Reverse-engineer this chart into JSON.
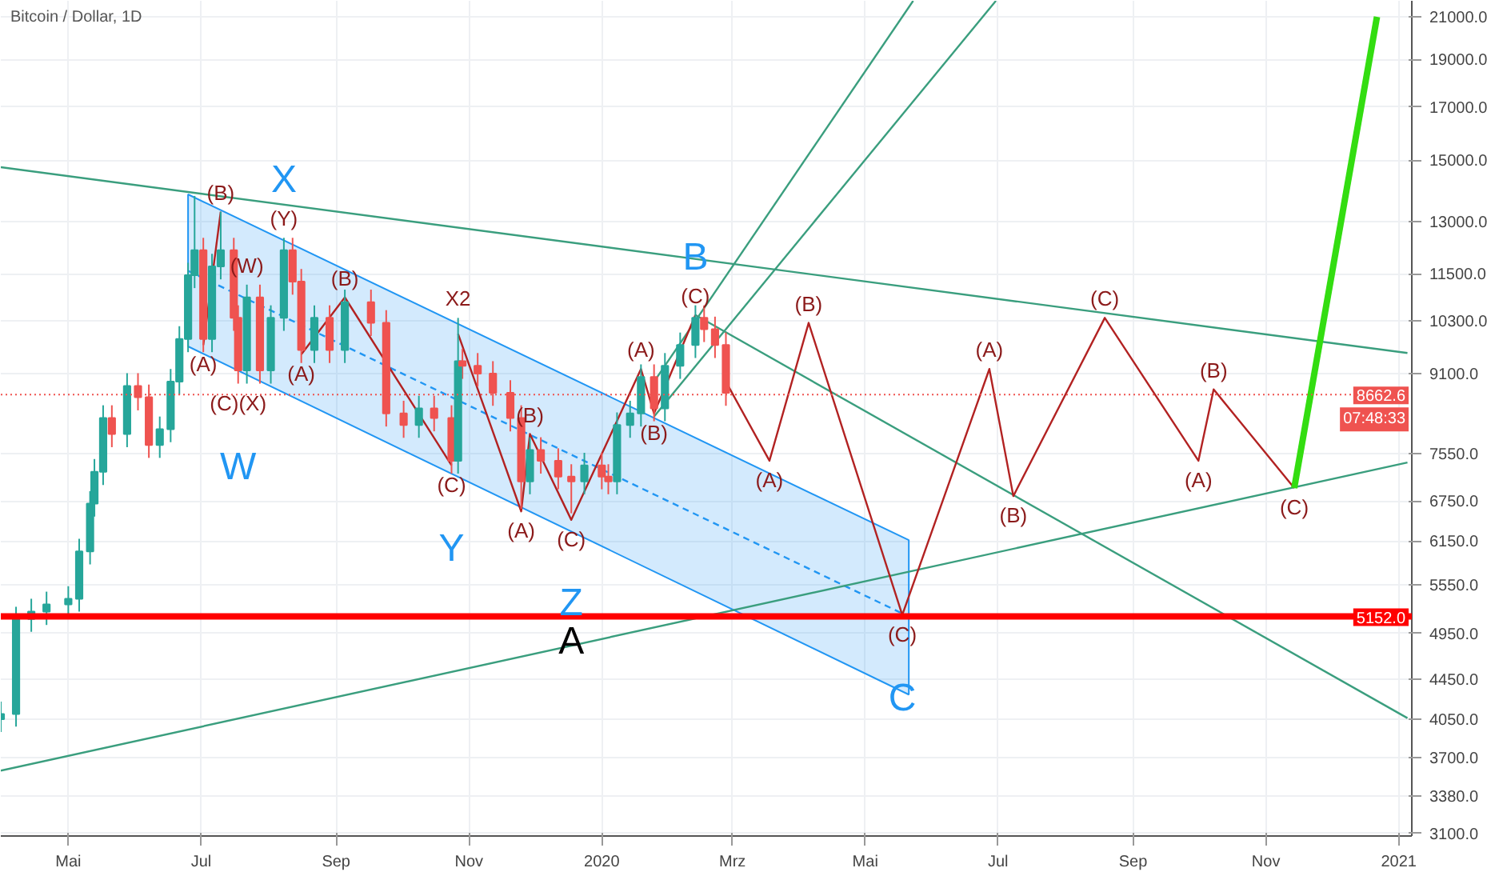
{
  "chart_data": {
    "type": "candlestick",
    "title": "Bitcoin / Dollar, 1D",
    "log": "y",
    "grid": true,
    "tick_labels": "xy",
    "xlim": [
      "2019-03-31",
      "2021-01-07"
    ],
    "ylim": [
      3080,
      21800
    ],
    "xticks": [
      {
        "value": "2019-05-01",
        "label": "Mai"
      },
      {
        "value": "2019-07-01",
        "label": "Jul"
      },
      {
        "value": "2019-09-01",
        "label": "Sep"
      },
      {
        "value": "2019-11-01",
        "label": "Nov"
      },
      {
        "value": "2020-01-01",
        "label": "2020"
      },
      {
        "value": "2020-03-01",
        "label": "Mrz"
      },
      {
        "value": "2020-05-01",
        "label": "Mai"
      },
      {
        "value": "2020-07-01",
        "label": "Jul"
      },
      {
        "value": "2020-09-01",
        "label": "Sep"
      },
      {
        "value": "2020-11-01",
        "label": "Nov"
      },
      {
        "value": "2021-01-01",
        "label": "2021"
      }
    ],
    "yticks": [
      {
        "value": 3100,
        "label": "3100.0"
      },
      {
        "value": 3380,
        "label": "3380.0"
      },
      {
        "value": 3700,
        "label": "3700.0"
      },
      {
        "value": 4050,
        "label": "4050.0"
      },
      {
        "value": 4450,
        "label": "4450.0"
      },
      {
        "value": 4950,
        "label": "4950.0"
      },
      {
        "value": 5550,
        "label": "5550.0"
      },
      {
        "value": 6150,
        "label": "6150.0"
      },
      {
        "value": 6750,
        "label": "6750.0"
      },
      {
        "value": 7550,
        "label": "7550.0"
      },
      {
        "value": 9100,
        "label": "9100.0"
      },
      {
        "value": 10300,
        "label": "10300.0"
      },
      {
        "value": 11500,
        "label": "11500.0"
      },
      {
        "value": 13000,
        "label": "13000.0"
      },
      {
        "value": 15000,
        "label": "15000.0"
      },
      {
        "value": 17000,
        "label": "17000.0"
      },
      {
        "value": 19000,
        "label": "19000.0"
      },
      {
        "value": 21000,
        "label": "21000.0"
      }
    ],
    "x": [
      "2019-03-31",
      "2019-04-07",
      "2019-04-14",
      "2019-04-21",
      "2019-05-01",
      "2019-05-06",
      "2019-05-11",
      "2019-05-13",
      "2019-05-17",
      "2019-05-21",
      "2019-05-28",
      "2019-06-02",
      "2019-06-07",
      "2019-06-12",
      "2019-06-17",
      "2019-06-21",
      "2019-06-25",
      "2019-06-28",
      "2019-07-02",
      "2019-07-06",
      "2019-07-10",
      "2019-07-16",
      "2019-07-18",
      "2019-07-22",
      "2019-07-28",
      "2019-08-02",
      "2019-08-08",
      "2019-08-12",
      "2019-08-16",
      "2019-08-22",
      "2019-08-29",
      "2019-09-05",
      "2019-09-17",
      "2019-09-24",
      "2019-10-02",
      "2019-10-09",
      "2019-10-16",
      "2019-10-24",
      "2019-10-27",
      "2019-10-29",
      "2019-11-05",
      "2019-11-12",
      "2019-11-20",
      "2019-11-25",
      "2019-11-29",
      "2019-12-04",
      "2019-12-12",
      "2019-12-18",
      "2019-12-24",
      "2020-01-01",
      "2020-01-04",
      "2020-01-08",
      "2020-01-14",
      "2020-01-19",
      "2020-01-25",
      "2020-01-30",
      "2020-02-06",
      "2020-02-13",
      "2020-02-17",
      "2020-02-22",
      "2020-02-27"
    ],
    "ohlc": [
      [
        4050,
        4220,
        3930,
        4100
      ],
      [
        4100,
        5270,
        3980,
        5120
      ],
      [
        5120,
        5370,
        4970,
        5210
      ],
      [
        5210,
        5460,
        5050,
        5300
      ],
      [
        5300,
        5530,
        5140,
        5370
      ],
      [
        5370,
        6180,
        5210,
        6000
      ],
      [
        6000,
        6910,
        5820,
        6710
      ],
      [
        6710,
        7450,
        6510,
        7230
      ],
      [
        7230,
        8450,
        7010,
        8200
      ],
      [
        8200,
        8450,
        7660,
        7900
      ],
      [
        7900,
        9110,
        7660,
        8840
      ],
      [
        8840,
        9110,
        8350,
        8610
      ],
      [
        8610,
        8870,
        7470,
        7700
      ],
      [
        7700,
        8230,
        7470,
        7990
      ],
      [
        7990,
        9200,
        7750,
        8930
      ],
      [
        8930,
        10170,
        8660,
        9870
      ],
      [
        9870,
        11800,
        9570,
        11460
      ],
      [
        11460,
        13800,
        11120,
        12150
      ],
      [
        12150,
        12510,
        9570,
        9870
      ],
      [
        9870,
        12050,
        9570,
        11700
      ],
      [
        11700,
        13300,
        11350,
        12150
      ],
      [
        12150,
        12510,
        10060,
        10370
      ],
      [
        10370,
        10680,
        8890,
        9170
      ],
      [
        9170,
        11210,
        8890,
        10880
      ],
      [
        10880,
        11210,
        8890,
        9170
      ],
      [
        9170,
        10680,
        8890,
        10370
      ],
      [
        10370,
        12510,
        10060,
        12150
      ],
      [
        12150,
        12510,
        10950,
        11290
      ],
      [
        11290,
        11630,
        9330,
        9620
      ],
      [
        9620,
        10680,
        9330,
        10370
      ],
      [
        10370,
        10680,
        9330,
        9620
      ],
      [
        9620,
        11080,
        9330,
        10760
      ],
      [
        10760,
        11080,
        9940,
        10250
      ],
      [
        10250,
        10560,
        8040,
        8290
      ],
      [
        8290,
        8540,
        7830,
        8070
      ],
      [
        8070,
        8640,
        7830,
        8390
      ],
      [
        8390,
        8640,
        7950,
        8200
      ],
      [
        8200,
        8450,
        7200,
        7420
      ],
      [
        7420,
        10370,
        7200,
        9370
      ],
      [
        9370,
        9650,
        8990,
        9270
      ],
      [
        9270,
        9550,
        8830,
        9100
      ],
      [
        9100,
        9370,
        8440,
        8700
      ],
      [
        8700,
        8960,
        7950,
        8200
      ],
      [
        8200,
        8450,
        6630,
        7070
      ],
      [
        7070,
        7840,
        6860,
        7610
      ],
      [
        7610,
        7840,
        7200,
        7420
      ],
      [
        7420,
        7640,
        6940,
        7150
      ],
      [
        7150,
        7360,
        6560,
        7070
      ],
      [
        7070,
        7560,
        6860,
        7340
      ],
      [
        7340,
        7560,
        6940,
        7150
      ],
      [
        7150,
        7360,
        6860,
        7070
      ],
      [
        7070,
        8310,
        6860,
        8070
      ],
      [
        8070,
        8540,
        7830,
        8290
      ],
      [
        8290,
        9300,
        8040,
        9030
      ],
      [
        9030,
        9300,
        8140,
        8390
      ],
      [
        8390,
        9550,
        8140,
        9270
      ],
      [
        9270,
        10020,
        8990,
        9730
      ],
      [
        9730,
        10680,
        9440,
        10370
      ],
      [
        10370,
        10680,
        9800,
        10100
      ],
      [
        10100,
        10400,
        9440,
        9730
      ],
      [
        9730,
        10020,
        8440,
        8700
      ]
    ],
    "series": [
      {
        "type": "line",
        "x": [
          "2019-06-25",
          "2020-05-21"
        ],
        "values": [
          11580,
          5150
        ],
        "lower": [
          9700,
          4290
        ],
        "upper": [
          13850,
          6160
        ],
        "color": "#2196f3",
        "line_style": "dashed"
      },
      {
        "type": "line",
        "x": [
          "2019-03-31",
          "2021-01-05"
        ],
        "values": [
          14760,
          9550
        ],
        "color": "#3a9e7e",
        "line_style": "solid"
      },
      {
        "type": "line",
        "x": [
          "2019-03-31",
          "2021-01-05"
        ],
        "values": [
          3590,
          7390
        ],
        "color": "#3a9e7e",
        "line_style": "solid"
      },
      {
        "type": "line",
        "x": [
          "2020-01-25",
          "2020-05-23"
        ],
        "values": [
          8930,
          21800
        ],
        "color": "#3a9e7e",
        "line_style": "solid"
      },
      {
        "type": "line",
        "x": [
          "2020-01-25",
          "2020-06-30"
        ],
        "values": [
          8230,
          21800
        ],
        "color": "#3a9e7e",
        "line_style": "solid"
      },
      {
        "type": "line",
        "x": [
          "2020-02-13",
          "2021-01-05"
        ],
        "values": [
          10440,
          4060
        ],
        "color": "#3a9e7e",
        "line_style": "solid"
      },
      {
        "type": "line",
        "x": [
          "2019-07-02",
          "2019-07-10"
        ],
        "values": [
          9730,
          13300
        ],
        "color": "#b22222",
        "line_style": "solid"
      },
      {
        "type": "line",
        "x": [
          "2019-08-16",
          "2019-09-05",
          "2019-10-24"
        ],
        "values": [
          9520,
          10880,
          7340
        ],
        "color": "#b22222",
        "line_style": "solid"
      },
      {
        "type": "line",
        "x": [
          "2019-10-27",
          "2019-11-25",
          "2019-11-29",
          "2019-12-18",
          "2020-01-19",
          "2020-01-25",
          "2020-02-13"
        ],
        "values": [
          9990,
          6590,
          7900,
          6460,
          9200,
          8290,
          10440
        ],
        "color": "#b22222",
        "line_style": "solid"
      },
      {
        "type": "line",
        "x": [
          "2020-02-27",
          "2020-03-18",
          "2020-04-05",
          "2020-05-18",
          "2020-06-27",
          "2020-07-08",
          "2020-08-19",
          "2020-10-01",
          "2020-10-08",
          "2020-11-14"
        ],
        "values": [
          8930,
          7420,
          10250,
          5170,
          9200,
          6830,
          10370,
          7420,
          8770,
          6960
        ],
        "color": "#b22222",
        "line_style": "solid"
      },
      {
        "type": "line",
        "x": [
          "2020-11-14",
          "2020-12-22"
        ],
        "values": [
          6960,
          21000
        ],
        "color": "#33dd11",
        "line_style": "solid"
      }
    ],
    "ref_lines": [
      {
        "axis": "y",
        "value": 5152,
        "label": "5152.0",
        "color": "#ff0000",
        "line_style": "solid"
      },
      {
        "axis": "y",
        "value": 8662.6,
        "label": "8662.6",
        "color": "#ef5350",
        "line_style": "dotted"
      }
    ],
    "annotations": [
      {
        "text": "(B)",
        "x": "2019-07-10",
        "y": 13300
      },
      {
        "text": "(Y)",
        "x": "2019-08-08",
        "y": 12510
      },
      {
        "text": "X",
        "x": "2019-08-08",
        "y": 12510
      },
      {
        "text": "(W)",
        "x": "2019-07-22",
        "y": 11210
      },
      {
        "text": "(B)",
        "x": "2019-09-05",
        "y": 10880
      },
      {
        "text": "(A)",
        "x": "2019-07-02",
        "y": 9730
      },
      {
        "text": "(C)(X)",
        "x": "2019-07-18",
        "y": 8890
      },
      {
        "text": "(A)",
        "x": "2019-08-16",
        "y": 9520
      },
      {
        "text": "W",
        "x": "2019-07-18",
        "y": 8890
      },
      {
        "text": "X2",
        "x": "2019-10-27",
        "y": 10370
      },
      {
        "text": "(C)",
        "x": "2019-10-24",
        "y": 7340
      },
      {
        "text": "Y",
        "x": "2019-10-24",
        "y": 7340
      },
      {
        "text": "(B)",
        "x": "2019-11-29",
        "y": 7900
      },
      {
        "text": "(A)",
        "x": "2019-11-25",
        "y": 6590
      },
      {
        "text": "(C)",
        "x": "2019-12-18",
        "y": 6460
      },
      {
        "text": "Z",
        "x": "2019-12-18",
        "y": 6460
      },
      {
        "text": "A",
        "x": "2019-12-18",
        "y": 6460
      },
      {
        "text": "(A)",
        "x": "2020-01-19",
        "y": 9200
      },
      {
        "text": "(B)",
        "x": "2020-01-25",
        "y": 8290
      },
      {
        "text": "(C)",
        "x": "2020-02-13",
        "y": 10440
      },
      {
        "text": "B",
        "x": "2020-02-13",
        "y": 10440
      },
      {
        "text": "(A)",
        "x": "2020-03-18",
        "y": 7420
      },
      {
        "text": "(B)",
        "x": "2020-04-05",
        "y": 10250
      },
      {
        "text": "(C)",
        "x": "2020-05-18",
        "y": 5170
      },
      {
        "text": "C",
        "x": "2020-05-18",
        "y": 5170
      },
      {
        "text": "(A)",
        "x": "2020-06-27",
        "y": 9200
      },
      {
        "text": "(B)",
        "x": "2020-07-08",
        "y": 6830
      },
      {
        "text": "(C)",
        "x": "2020-08-19",
        "y": 10370
      },
      {
        "text": "(B)",
        "x": "2020-10-08",
        "y": 8770
      },
      {
        "text": "(A)",
        "x": "2020-10-01",
        "y": 7420
      },
      {
        "text": "(C)",
        "x": "2020-11-14",
        "y": 6960
      },
      "07:48:33"
    ]
  }
}
